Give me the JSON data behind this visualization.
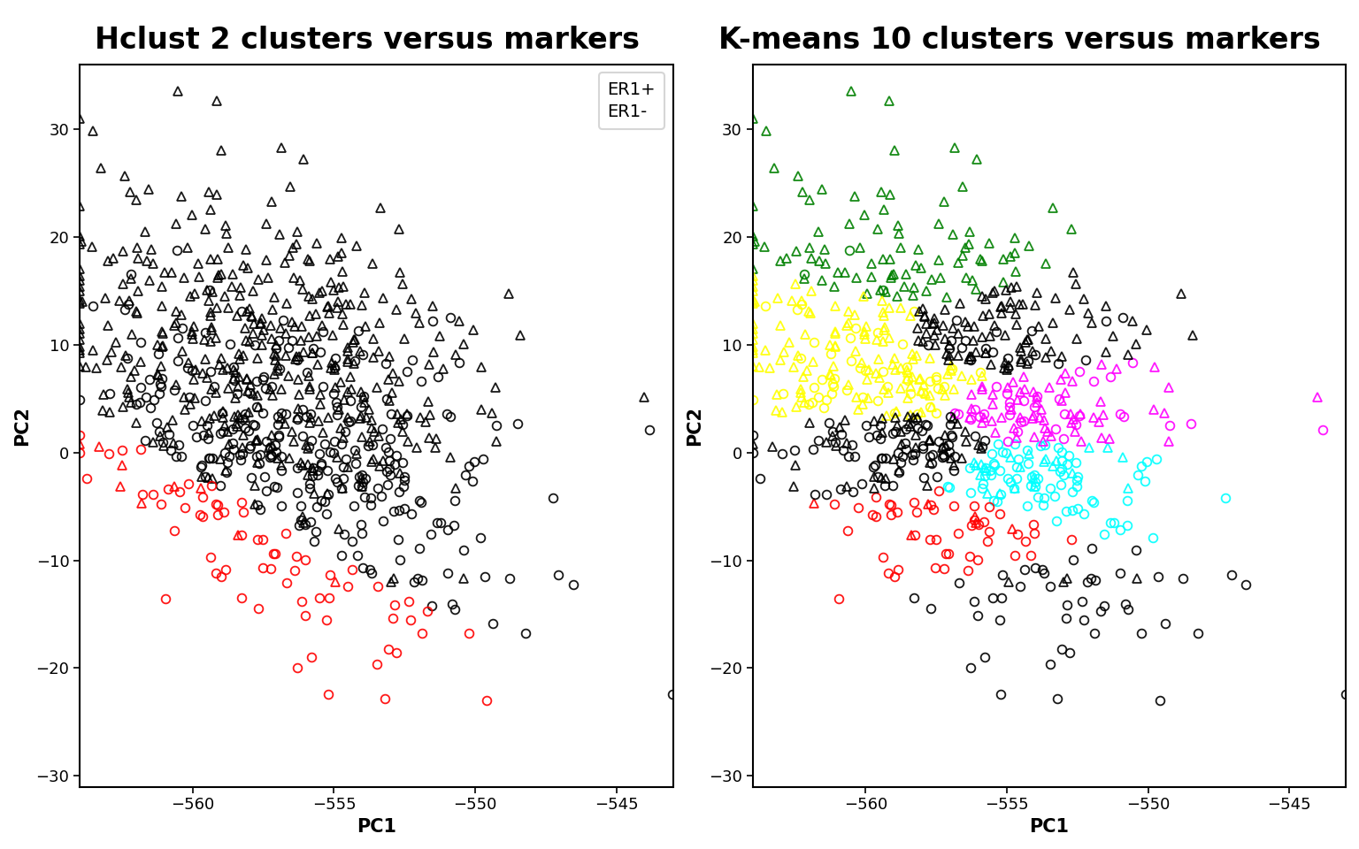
{
  "title_left": "Hclust 2 clusters versus markers",
  "title_right": "K-means 10 clusters versus markers",
  "xlabel": "PC1",
  "ylabel": "PC2",
  "xlim": [
    -564,
    -543
  ],
  "ylim": [
    -31,
    36
  ],
  "xticks": [
    -560,
    -555,
    -550,
    -545
  ],
  "yticks": [
    -30,
    -20,
    -10,
    0,
    10,
    20,
    30
  ],
  "legend_labels": [
    "ER1+",
    "ER1-"
  ],
  "n_points": 800,
  "seed": 99,
  "cluster_colors_10": [
    "green",
    "yellow",
    "gray",
    "black",
    "red",
    "blue",
    "cyan",
    "magenta",
    "darkred",
    "black"
  ],
  "background_color": "white",
  "title_fontsize": 24,
  "axis_label_fontsize": 15,
  "tick_fontsize": 13,
  "marker_size": 7,
  "marker_edge_width": 1.3
}
